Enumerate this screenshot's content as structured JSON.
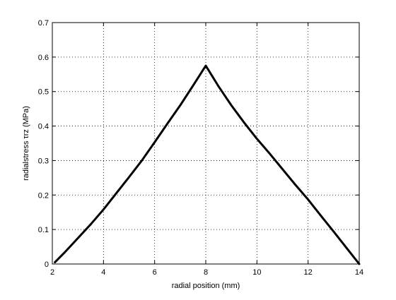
{
  "colors": {
    "background": "#ffffff",
    "axes": "#000000",
    "grid": "#000000",
    "line": "#000000"
  },
  "chart_data": {
    "type": "line",
    "title": "",
    "xlabel": "radial position (mm)",
    "ylabel": "radialstress τrz (MPa)",
    "xlim": [
      2,
      14
    ],
    "ylim": [
      0,
      0.7
    ],
    "xticks": [
      2,
      4,
      6,
      8,
      10,
      12,
      14
    ],
    "yticks": [
      0,
      0.1,
      0.2,
      0.3,
      0.4,
      0.5,
      0.6,
      0.7
    ],
    "xtick_labels": [
      "2",
      "4",
      "6",
      "8",
      "10",
      "12",
      "14"
    ],
    "ytick_labels": [
      "0",
      "0.1",
      "0.2",
      "0.3",
      "0.4",
      "0.5",
      "0.6",
      "0.7"
    ],
    "grid": true,
    "grid_style": "dotted",
    "series": [
      {
        "x": [
          2.1,
          2.5,
          3.0,
          3.5,
          4.0,
          4.5,
          5.0,
          5.5,
          6.0,
          6.5,
          7.0,
          7.5,
          8.0,
          8.5,
          9.0,
          9.5,
          10.0,
          10.5,
          11.0,
          11.5,
          12.0,
          12.5,
          13.0,
          13.5,
          14.0
        ],
        "y": [
          0.005,
          0.035,
          0.075,
          0.115,
          0.158,
          0.205,
          0.252,
          0.3,
          0.353,
          0.407,
          0.46,
          0.517,
          0.575,
          0.515,
          0.46,
          0.41,
          0.363,
          0.32,
          0.275,
          0.23,
          0.187,
          0.14,
          0.094,
          0.047,
          0.0
        ]
      }
    ]
  }
}
